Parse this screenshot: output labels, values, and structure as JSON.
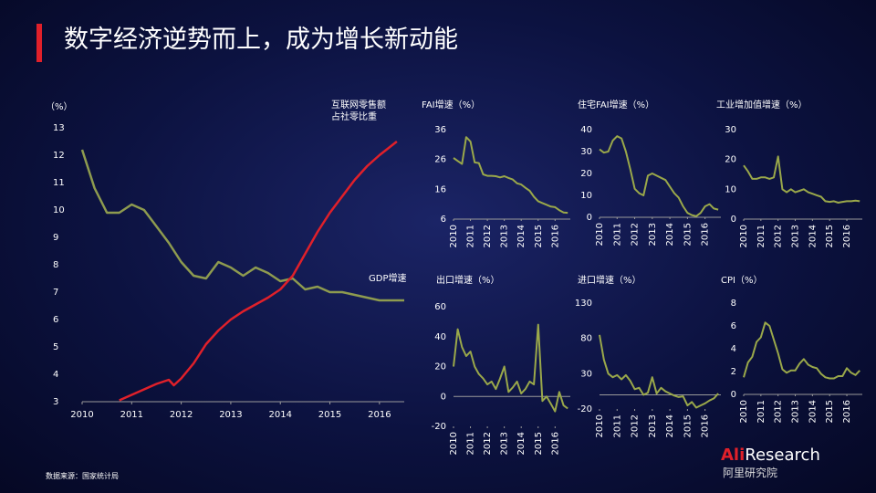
{
  "title": "数字经济逆势而上，成为增长新动能",
  "source": "数据来源：国家统计局",
  "logo": {
    "brand": [
      "Ali",
      "Research"
    ],
    "cn": "阿里研究院"
  },
  "chart_data": [
    {
      "type": "line",
      "y_label": "（%）",
      "xlim": [
        2010,
        2016.5
      ],
      "xticks": [
        2010,
        2011,
        2012,
        2013,
        2014,
        2015,
        2016
      ],
      "ylim": [
        3,
        13
      ],
      "yticks": [
        3,
        4,
        5,
        6,
        7,
        8,
        9,
        10,
        11,
        12,
        13
      ],
      "series": [
        {
          "name": "GDP增速",
          "color": "#8e9b4f",
          "x": [
            2010,
            2010.25,
            2010.5,
            2010.75,
            2011,
            2011.25,
            2011.5,
            2011.75,
            2012,
            2012.25,
            2012.5,
            2012.75,
            2013,
            2013.25,
            2013.5,
            2013.75,
            2014,
            2014.25,
            2014.5,
            2014.75,
            2015,
            2015.25,
            2015.5,
            2015.75,
            2016,
            2016.25,
            2016.5
          ],
          "values": [
            12.2,
            10.8,
            9.9,
            9.9,
            10.2,
            10.0,
            9.4,
            8.8,
            8.1,
            7.6,
            7.5,
            8.1,
            7.9,
            7.6,
            7.9,
            7.7,
            7.4,
            7.5,
            7.1,
            7.2,
            7.0,
            7.0,
            6.9,
            6.8,
            6.7,
            6.7,
            6.7
          ]
        },
        {
          "name": "互联网零售额占社零比重",
          "color": "#e0202a",
          "x": [
            2010.75,
            2011,
            2011.25,
            2011.5,
            2011.75,
            2011.85,
            2012,
            2012.25,
            2012.5,
            2012.75,
            2013,
            2013.25,
            2013.5,
            2013.75,
            2014,
            2014.25,
            2014.5,
            2014.75,
            2015,
            2015.25,
            2015.5,
            2015.75,
            2016,
            2016.35
          ],
          "values": [
            3.05,
            3.25,
            3.45,
            3.65,
            3.8,
            3.6,
            3.85,
            4.4,
            5.1,
            5.6,
            6.0,
            6.3,
            6.55,
            6.8,
            7.1,
            7.6,
            8.4,
            9.2,
            9.9,
            10.5,
            11.1,
            11.6,
            12.0,
            12.5
          ]
        }
      ]
    },
    {
      "type": "line",
      "title": "FAI增速（%）",
      "color": "#9aa84a",
      "xlim": [
        2010,
        2016.9
      ],
      "xticks": [
        2010,
        2011,
        2012,
        2013,
        2014,
        2015,
        2016
      ],
      "ylim": [
        6,
        36
      ],
      "yticks": [
        6,
        16,
        26,
        36
      ],
      "x": [
        2010,
        2010.25,
        2010.5,
        2010.75,
        2011,
        2011.25,
        2011.5,
        2011.75,
        2012,
        2012.25,
        2012.5,
        2012.75,
        2013,
        2013.25,
        2013.5,
        2013.75,
        2014,
        2014.25,
        2014.5,
        2014.75,
        2015,
        2015.25,
        2015.5,
        2015.75,
        2016,
        2016.25,
        2016.5,
        2016.75
      ],
      "values": [
        26.5,
        25.5,
        24.5,
        33.5,
        32,
        25,
        24.8,
        21,
        20.5,
        20.5,
        20.4,
        20,
        20.4,
        19.8,
        19.3,
        18,
        17.6,
        16.5,
        15.5,
        13.5,
        12,
        11.4,
        10.8,
        10.2,
        10,
        9,
        8.2,
        8.1
      ]
    },
    {
      "type": "line",
      "title": "住宅FAI增速（%）",
      "color": "#9aa84a",
      "xlim": [
        2010,
        2016.9
      ],
      "xticks": [
        2010,
        2011,
        2012,
        2013,
        2014,
        2015,
        2016
      ],
      "ylim": [
        0,
        40
      ],
      "yticks": [
        0,
        10,
        20,
        30,
        40
      ],
      "x": [
        2010,
        2010.25,
        2010.5,
        2010.75,
        2011,
        2011.25,
        2011.5,
        2011.75,
        2012,
        2012.25,
        2012.5,
        2012.75,
        2013,
        2013.25,
        2013.5,
        2013.75,
        2014,
        2014.25,
        2014.5,
        2014.75,
        2015,
        2015.25,
        2015.5,
        2015.75,
        2016,
        2016.25,
        2016.5,
        2016.75
      ],
      "values": [
        31,
        29.5,
        30,
        35,
        37,
        36,
        30,
        22,
        13,
        11,
        10,
        19,
        20,
        19,
        18,
        17,
        14,
        11,
        9,
        5,
        2,
        1,
        0.5,
        2,
        5,
        6,
        4,
        3.5
      ]
    },
    {
      "type": "line",
      "title": "工业增加值增速（%）",
      "color": "#9aa84a",
      "xlim": [
        2010,
        2016.9
      ],
      "xticks": [
        2010,
        2011,
        2012,
        2013,
        2014,
        2015,
        2016
      ],
      "ylim": [
        0,
        30
      ],
      "yticks": [
        0,
        10,
        20,
        30
      ],
      "x": [
        2010,
        2010.25,
        2010.5,
        2010.75,
        2011,
        2011.25,
        2011.5,
        2011.75,
        2012,
        2012.25,
        2012.5,
        2012.75,
        2013,
        2013.25,
        2013.5,
        2013.75,
        2014,
        2014.25,
        2014.5,
        2014.75,
        2015,
        2015.25,
        2015.5,
        2015.75,
        2016,
        2016.25,
        2016.5,
        2016.75
      ],
      "values": [
        18,
        16,
        13.5,
        13.5,
        14,
        14,
        13.5,
        14,
        21,
        10,
        9,
        10,
        9,
        9.5,
        10,
        9,
        8.5,
        8,
        7.5,
        6,
        5.8,
        6,
        5.5,
        5.8,
        6,
        6,
        6.2,
        6
      ]
    },
    {
      "type": "line",
      "title": "出口增速（%）",
      "color": "#9aa84a",
      "xlim": [
        2010,
        2016.9
      ],
      "xticks": [
        2010,
        2011,
        2012,
        2013,
        2014,
        2015,
        2016
      ],
      "ylim": [
        -20,
        60
      ],
      "yticks": [
        -20,
        0,
        20,
        40,
        60
      ],
      "x": [
        2010,
        2010.25,
        2010.5,
        2010.75,
        2011,
        2011.25,
        2011.5,
        2011.75,
        2012,
        2012.25,
        2012.5,
        2012.75,
        2013,
        2013.25,
        2013.5,
        2013.75,
        2014,
        2014.25,
        2014.5,
        2014.75,
        2015,
        2015.25,
        2015.5,
        2015.75,
        2016,
        2016.25,
        2016.5,
        2016.75
      ],
      "values": [
        20,
        45,
        33,
        27,
        30,
        20,
        15,
        12,
        8,
        10,
        5,
        12,
        20,
        3,
        6,
        10,
        2,
        5,
        10,
        8,
        48,
        -3,
        0,
        -5,
        -10,
        3,
        -6,
        -8
      ]
    },
    {
      "type": "line",
      "title": "进口增速（%）",
      "color": "#9aa84a",
      "xlim": [
        2010,
        2016.9
      ],
      "xticks": [
        2010,
        2011,
        2012,
        2013,
        2014,
        2015,
        2016
      ],
      "ylim": [
        -20,
        130
      ],
      "yticks": [
        -20,
        30,
        80,
        130
      ],
      "x": [
        2010,
        2010.25,
        2010.5,
        2010.75,
        2011,
        2011.25,
        2011.5,
        2011.75,
        2012,
        2012.25,
        2012.5,
        2012.75,
        2013,
        2013.25,
        2013.5,
        2013.75,
        2014,
        2014.25,
        2014.5,
        2014.75,
        2015,
        2015.25,
        2015.5,
        2015.75,
        2016,
        2016.25,
        2016.5,
        2016.75
      ],
      "values": [
        85,
        50,
        30,
        25,
        28,
        22,
        28,
        20,
        8,
        10,
        0,
        3,
        25,
        2,
        10,
        5,
        2,
        -1,
        -3,
        -2,
        -15,
        -10,
        -18,
        -15,
        -12,
        -8,
        -5,
        2
      ]
    },
    {
      "type": "line",
      "title": "CPI（%）",
      "color": "#9aa84a",
      "xlim": [
        2010,
        2016.9
      ],
      "xticks": [
        2010,
        2011,
        2012,
        2013,
        2014,
        2015,
        2016
      ],
      "ylim": [
        0,
        8
      ],
      "yticks": [
        0,
        2,
        4,
        6,
        8
      ],
      "x": [
        2010,
        2010.25,
        2010.5,
        2010.75,
        2011,
        2011.25,
        2011.5,
        2011.75,
        2012,
        2012.25,
        2012.5,
        2012.75,
        2013,
        2013.25,
        2013.5,
        2013.75,
        2014,
        2014.25,
        2014.5,
        2014.75,
        2015,
        2015.25,
        2015.5,
        2015.75,
        2016,
        2016.25,
        2016.5,
        2016.75
      ],
      "values": [
        1.5,
        2.8,
        3.3,
        4.6,
        5,
        6.3,
        6,
        4.8,
        3.6,
        2.2,
        1.9,
        2.1,
        2.1,
        2.7,
        3.1,
        2.6,
        2.4,
        2.3,
        1.8,
        1.5,
        1.4,
        1.4,
        1.6,
        1.6,
        2.3,
        1.9,
        1.7,
        2.1
      ]
    }
  ]
}
